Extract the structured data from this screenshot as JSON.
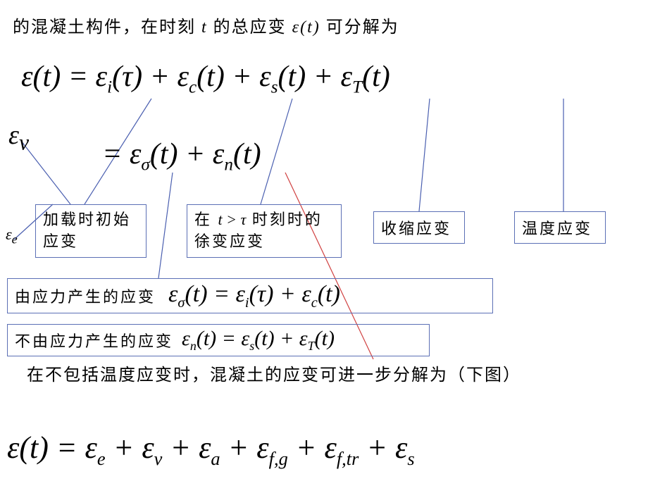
{
  "intro": {
    "pre": "的混凝土构件，在时刻",
    "t": "t",
    "mid": " 的总应变 ",
    "eps_t": "ε(t)",
    "post": "可分解为"
  },
  "eq1": "ε(t) = ε<sub>i</sub>(τ) + ε<sub>c</sub>(t) + ε<sub>s</sub>(t) + ε<sub>T</sub>(t)",
  "eps_v": "ε<sub>v</sub>",
  "eps_e": "ε<sub>e</sub>",
  "eq2": "= ε<sub>σ</sub>(t) + ε<sub>n</sub>(t)",
  "boxes": {
    "b1": "加载时初始应变",
    "b2_pre": "在 ",
    "b2_cond": "t > τ",
    "b2_post": " 时刻时的徐变应变",
    "b3": "收缩应变",
    "b4": "温度应变",
    "b5_label": "由应力产生的应变",
    "b5_eq": "ε<sub>σ</sub>(t) = ε<sub>i</sub>(τ) + ε<sub>c</sub>(t)",
    "b6_label": "不由应力产生的应变",
    "b6_eq": "ε<sub>n</sub>(t) = ε<sub>s</sub>(t) + ε<sub>T</sub>(t)"
  },
  "para2": "在不包括温度应变时，混凝土的应变可进一步分解为（下图）",
  "eq5": "ε(t) = ε<sub>e</sub> + ε<sub>v</sub> + ε<sub>a</sub> + ε<sub>f,g</sub> + ε<sub>f,tr</sub> + ε<sub>s</sub>",
  "colors": {
    "box_border": "#5b6fb5",
    "blue_line": "#4a5fb0",
    "red_line": "#d04040"
  }
}
